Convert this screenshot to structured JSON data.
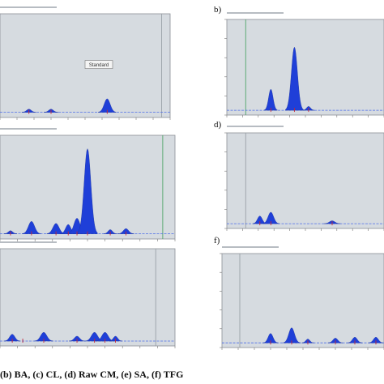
{
  "caption": "(b) BA, (c) CL, (d) Raw CM, (e) SA, (f) TFG",
  "colors": {
    "plot_bg": "#d6dbe0",
    "peak_fill": "#1f3fd8",
    "baseline": "#4d6ee8",
    "frame": "#8a8f96",
    "marker": "#c0283a",
    "vline_green": "#4fa56a",
    "vline_gray": "#9aa1a8"
  },
  "panels": [
    {
      "id": "a",
      "letter": "",
      "box_label": "Standard",
      "chart_data": {
        "type": "area",
        "title": "",
        "xlim": [
          0,
          10
        ],
        "ylim": [
          0,
          100
        ],
        "baseline": 5,
        "peaks": [
          {
            "x": 1.7,
            "height": 3,
            "width": 0.28
          },
          {
            "x": 3.0,
            "height": 3,
            "width": 0.28
          },
          {
            "x": 6.3,
            "height": 13,
            "width": 0.35
          }
        ],
        "peak_labels": [
          "",
          "",
          ""
        ],
        "markers": [
          1.7,
          3.0,
          6.3
        ],
        "vlines": [
          {
            "x": 9.5,
            "color": "gray"
          }
        ],
        "grid": true
      }
    },
    {
      "id": "b",
      "letter": "b)",
      "box_label": "",
      "chart_data": {
        "type": "area",
        "title": "",
        "xlim": [
          0,
          10
        ],
        "ylim": [
          0,
          100
        ],
        "baseline": 5,
        "peaks": [
          {
            "x": 2.8,
            "height": 22,
            "width": 0.28
          },
          {
            "x": 4.3,
            "height": 66,
            "width": 0.38
          },
          {
            "x": 5.2,
            "height": 4,
            "width": 0.25
          }
        ],
        "peak_labels": [
          "",
          "",
          ""
        ],
        "markers": [
          2.8,
          4.3,
          5.2
        ],
        "vlines": [
          {
            "x": 1.2,
            "color": "green"
          }
        ],
        "grid": true
      }
    },
    {
      "id": "c",
      "letter": "",
      "box_label": "",
      "chart_data": {
        "type": "area",
        "title": "",
        "xlim": [
          0,
          10
        ],
        "ylim": [
          0,
          100
        ],
        "baseline": 5,
        "peaks": [
          {
            "x": 0.6,
            "height": 3,
            "width": 0.25
          },
          {
            "x": 1.8,
            "height": 12,
            "width": 0.35
          },
          {
            "x": 3.2,
            "height": 10,
            "width": 0.35
          },
          {
            "x": 3.9,
            "height": 9,
            "width": 0.3
          },
          {
            "x": 4.4,
            "height": 15,
            "width": 0.35
          },
          {
            "x": 5.0,
            "height": 82,
            "width": 0.38
          },
          {
            "x": 6.3,
            "height": 4,
            "width": 0.25
          },
          {
            "x": 7.2,
            "height": 5,
            "width": 0.3
          }
        ],
        "peak_labels": [
          "",
          "",
          "",
          "",
          "",
          "",
          "",
          ""
        ],
        "markers": [
          0.6,
          1.8,
          3.2,
          3.9,
          4.4,
          5.0,
          6.3,
          7.2
        ],
        "vlines": [
          {
            "x": 9.3,
            "color": "green"
          }
        ],
        "grid": true
      }
    },
    {
      "id": "d",
      "letter": "d)",
      "box_label": "",
      "chart_data": {
        "type": "area",
        "title": "",
        "xlim": [
          0,
          10
        ],
        "ylim": [
          0,
          100
        ],
        "baseline": 5,
        "peaks": [
          {
            "x": 2.1,
            "height": 8,
            "width": 0.3
          },
          {
            "x": 2.8,
            "height": 12,
            "width": 0.35
          },
          {
            "x": 6.7,
            "height": 3,
            "width": 0.35
          }
        ],
        "peak_labels": [
          "",
          "",
          ""
        ],
        "markers": [
          2.1,
          2.8,
          6.7
        ],
        "vlines": [
          {
            "x": 1.2,
            "color": "gray"
          }
        ],
        "grid": true
      }
    },
    {
      "id": "e",
      "letter": "",
      "box_label": "",
      "chart_data": {
        "type": "area",
        "title": "",
        "xlim": [
          0,
          10
        ],
        "ylim": [
          0,
          100
        ],
        "baseline": 5,
        "peaks": [
          {
            "x": 0.7,
            "height": 7,
            "width": 0.3
          },
          {
            "x": 2.5,
            "height": 9,
            "width": 0.35
          },
          {
            "x": 4.4,
            "height": 5,
            "width": 0.3
          },
          {
            "x": 5.4,
            "height": 9,
            "width": 0.35
          },
          {
            "x": 6.0,
            "height": 9,
            "width": 0.35
          },
          {
            "x": 6.6,
            "height": 5,
            "width": 0.25
          }
        ],
        "peak_labels": [
          "",
          "",
          "",
          "",
          "",
          ""
        ],
        "markers": [
          0.7,
          1.3,
          2.5,
          4.4,
          5.4,
          6.0,
          6.6
        ],
        "vlines": [
          {
            "x": 8.9,
            "color": "gray"
          }
        ],
        "grid": true
      }
    },
    {
      "id": "f",
      "letter": "f)",
      "box_label": "",
      "chart_data": {
        "type": "area",
        "title": "",
        "xlim": [
          0,
          10
        ],
        "ylim": [
          0,
          100
        ],
        "baseline": 5,
        "peaks": [
          {
            "x": 3.0,
            "height": 10,
            "width": 0.3
          },
          {
            "x": 4.3,
            "height": 16,
            "width": 0.35
          },
          {
            "x": 5.3,
            "height": 4,
            "width": 0.25
          },
          {
            "x": 7.0,
            "height": 5,
            "width": 0.3
          },
          {
            "x": 8.2,
            "height": 6,
            "width": 0.3
          },
          {
            "x": 9.5,
            "height": 6,
            "width": 0.3
          }
        ],
        "peak_labels": [
          "",
          "",
          "",
          "",
          "",
          ""
        ],
        "markers": [
          3.0,
          4.3,
          5.3,
          7.0,
          8.2,
          9.5
        ],
        "vlines": [
          {
            "x": 1.1,
            "color": "gray"
          }
        ],
        "grid": true
      }
    }
  ]
}
